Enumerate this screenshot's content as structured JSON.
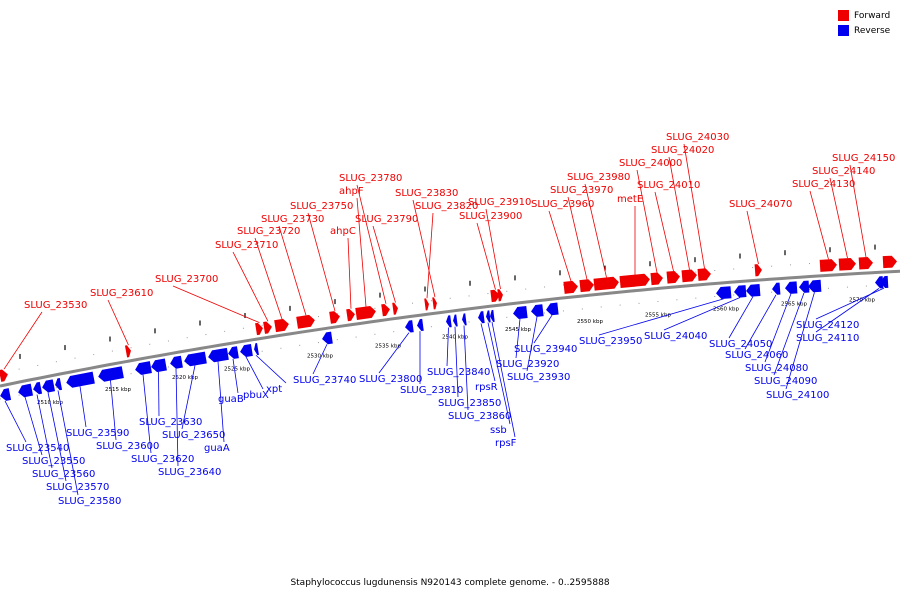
{
  "legend": [
    {
      "label": "Forward",
      "color": "#ee0000"
    },
    {
      "label": "Reverse",
      "color": "#0000ee"
    }
  ],
  "footer": "Staphylococcus lugdunensis N920143 complete genome. - 0..2595888",
  "colors": {
    "forward": "#ee0000",
    "reverse": "#0000ee",
    "backbone": "#888888",
    "tick": "#000000"
  },
  "scale_labels": [
    "2510 kbp",
    "2515 kbp",
    "2520 kbp",
    "2525 kbp",
    "2530 kbp",
    "2535 kbp",
    "2540 kbp",
    "2545 kbp",
    "2550 kbp",
    "2555 kbp",
    "2560 kbp",
    "2565 kbp",
    "2570 kbp"
  ],
  "forward_genes": [
    "SLUG_23530",
    "SLUG_23610",
    "SLUG_23700",
    "SLUG_23710",
    "SLUG_23720",
    "SLUG_23730",
    "SLUG_23750",
    "ahpC",
    "ahpF",
    "SLUG_23780",
    "SLUG_23790",
    "SLUG_23820",
    "SLUG_23830",
    "SLUG_23900",
    "SLUG_23910",
    "SLUG_23960",
    "SLUG_23970",
    "SLUG_23980",
    "metE",
    "SLUG_24000",
    "SLUG_24010",
    "SLUG_24020",
    "SLUG_24030",
    "SLUG_24070",
    "SLUG_24130",
    "SLUG_24140",
    "SLUG_24150"
  ],
  "reverse_genes": [
    "SLUG_23540",
    "SLUG_23550",
    "SLUG_23560",
    "SLUG_23570",
    "SLUG_23580",
    "SLUG_23590",
    "SLUG_23600",
    "SLUG_23620",
    "SLUG_23630",
    "SLUG_23640",
    "SLUG_23650",
    "guaA",
    "guaB",
    "pbuX",
    "xpt",
    "SLUG_23740",
    "SLUG_23800",
    "SLUG_23810",
    "SLUG_23840",
    "SLUG_23850",
    "SLUG_23860",
    "rpsR",
    "ssb",
    "rpsF",
    "SLUG_23920",
    "SLUG_23930",
    "SLUG_23940",
    "SLUG_23950",
    "SLUG_24040",
    "SLUG_24050",
    "SLUG_24060",
    "SLUG_24080",
    "SLUG_24090",
    "SLUG_24100",
    "SLUG_24110",
    "SLUG_24120"
  ]
}
